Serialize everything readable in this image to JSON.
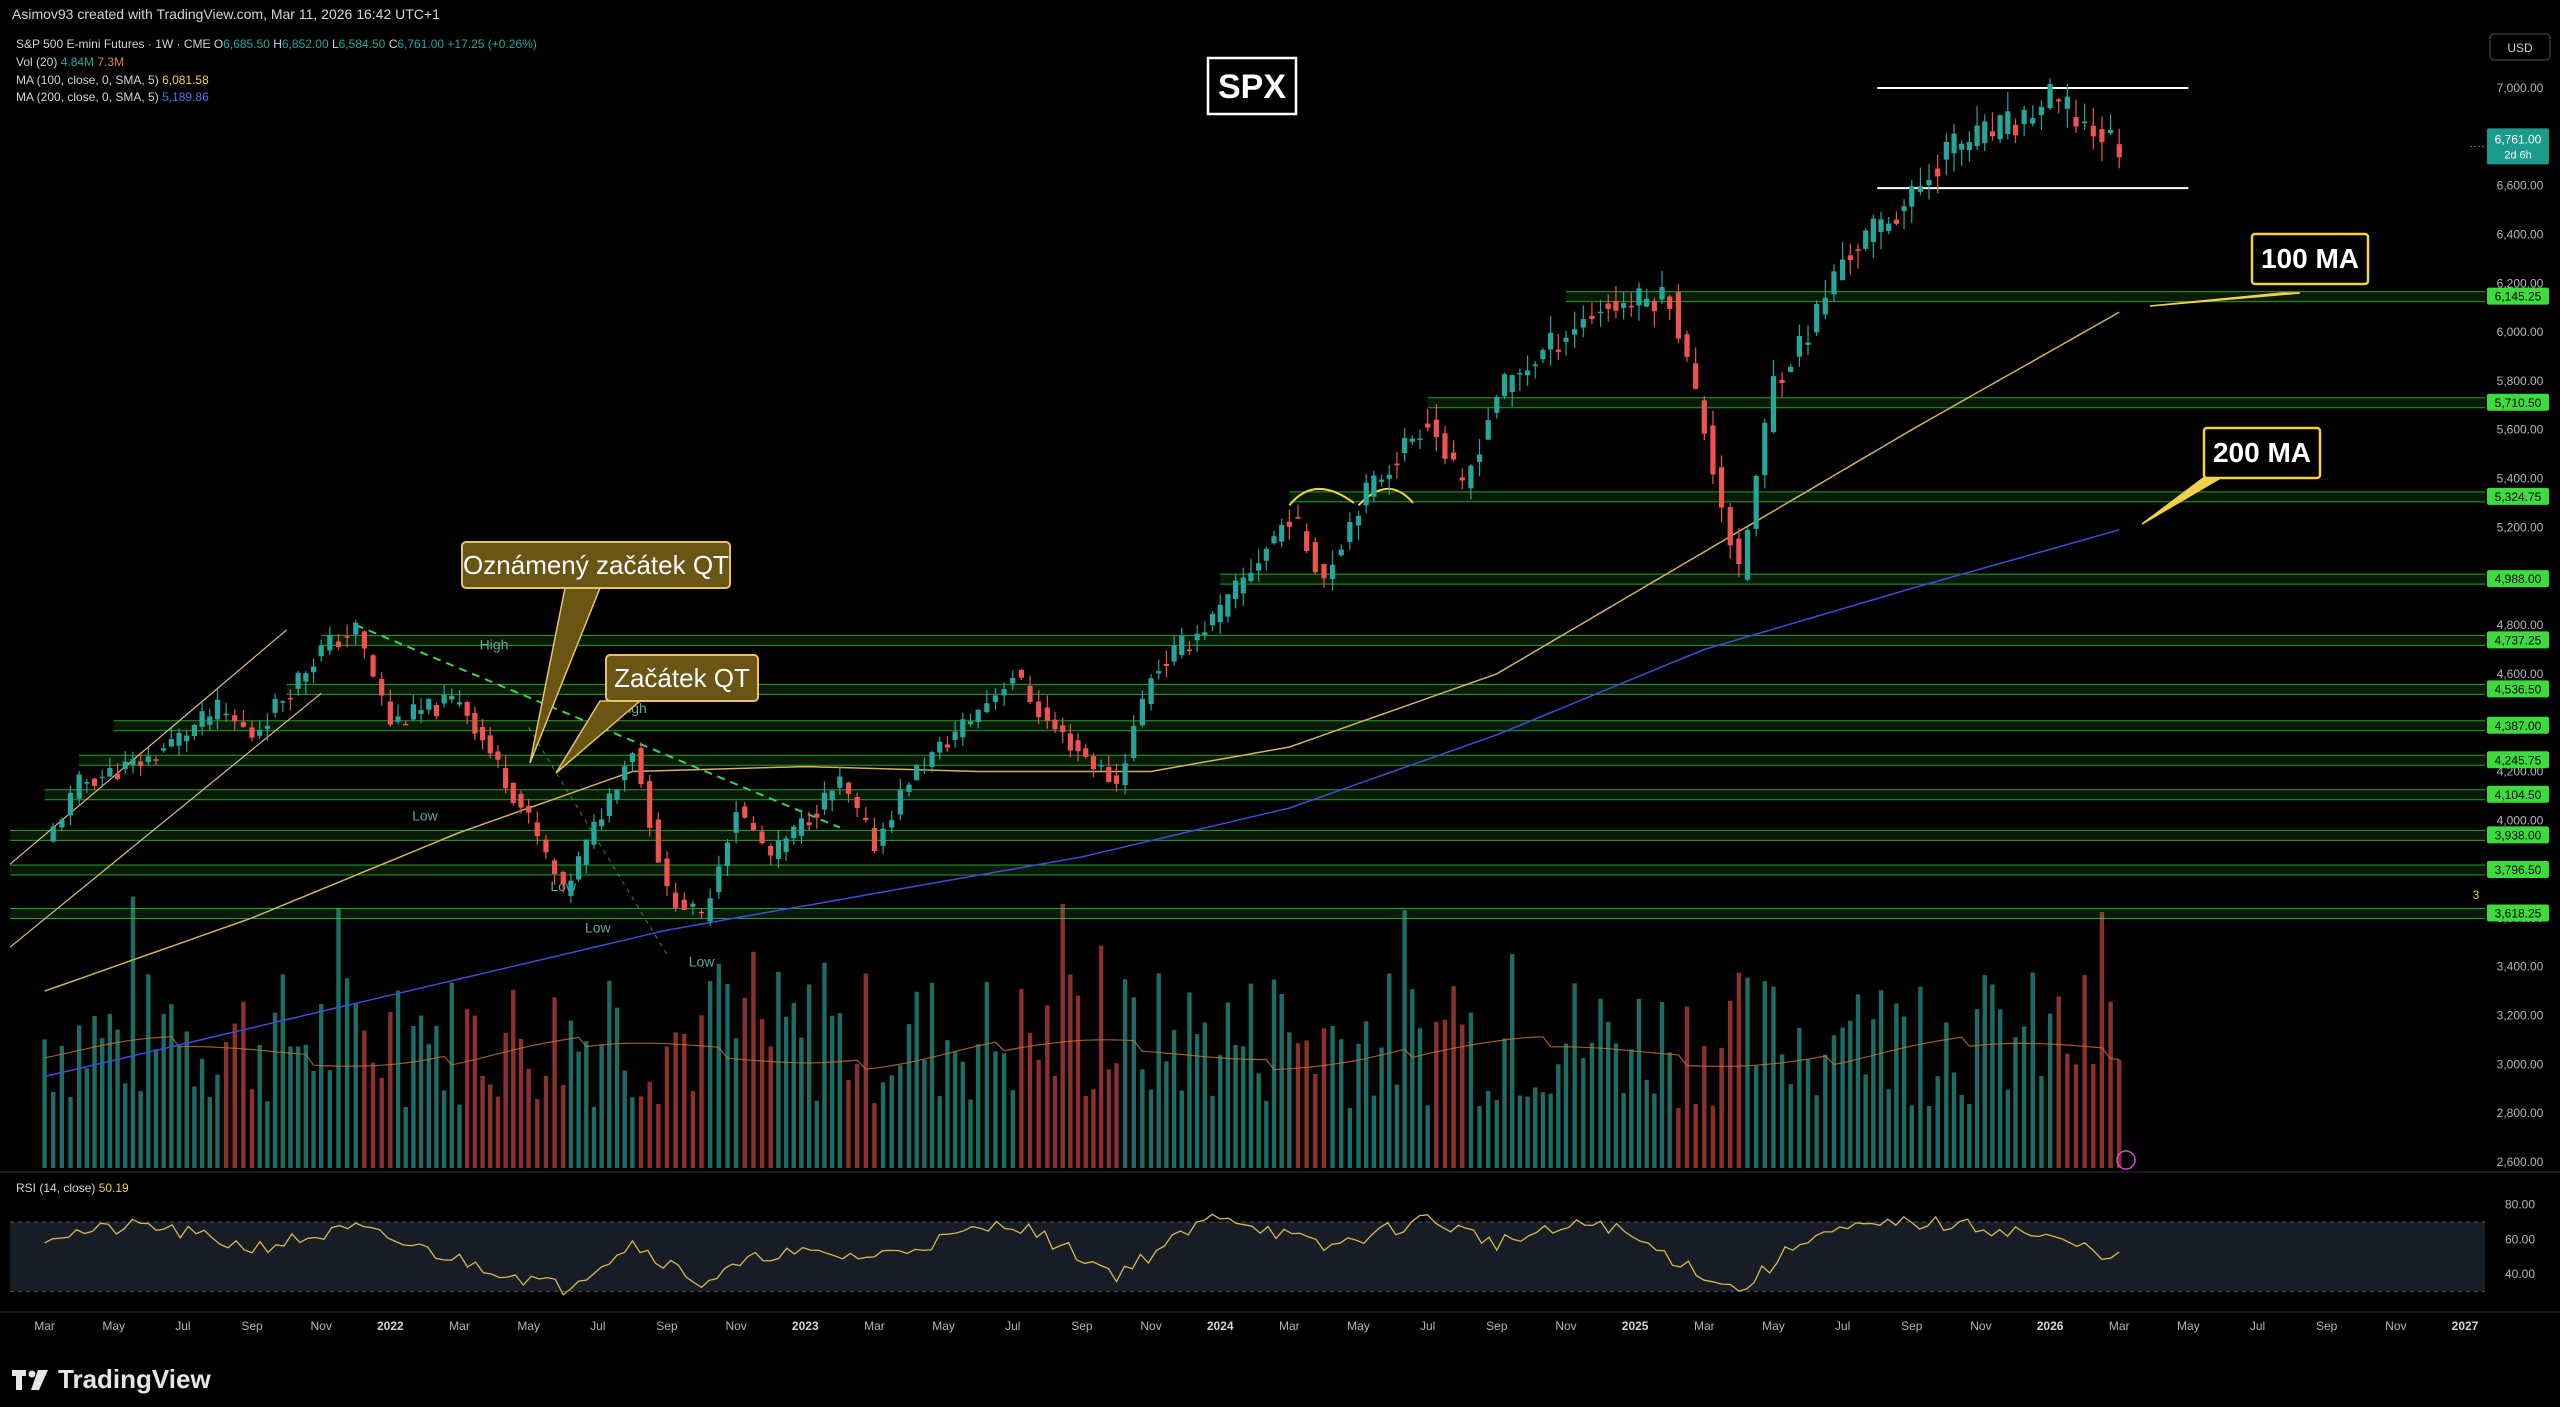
{
  "header": {
    "credit": "Asimov93 created with TradingView.com, Mar 11, 2026 16:42 UTC+1"
  },
  "legend": {
    "symbol": "S&P 500 E-mini Futures · 1W · CME",
    "ohlc": [
      {
        "k": "O",
        "v": "6,685.50"
      },
      {
        "k": "H",
        "v": "6,852.00"
      },
      {
        "k": "L",
        "v": "6,584.50"
      },
      {
        "k": "C",
        "v": "6,761.00"
      }
    ],
    "change": "+17.25 (+0.26%)",
    "vol_label": "Vol (20)",
    "vol_v1": "4.84M",
    "vol_v2": "7.3M",
    "ma100_label": "MA (100, close, 0, SMA, 5)",
    "ma100_value": "6,081.58",
    "ma200_label": "MA (200, close, 0, SMA, 5)",
    "ma200_value": "5,189.86"
  },
  "rsi": {
    "label": "RSI (14, close)",
    "value": "50.19",
    "ticks": [
      "80.00",
      "60.00",
      "40.00"
    ],
    "level_low": 30,
    "level_high": 70
  },
  "currency": "USD",
  "last_price": {
    "value": "6,761.00",
    "countdown": "2d 6h"
  },
  "annotations": {
    "spx": "SPX",
    "ma100": "100 MA",
    "ma200": "200 MA",
    "qt_announced": "Oznámený začátek QT",
    "qt_start": "Začátek QT",
    "high1": "High",
    "high2": "High",
    "low1": "Low",
    "low2": "Low",
    "low3": "Low",
    "low4": "Low",
    "small_marker": "3"
  },
  "colors": {
    "up": "#26a69a",
    "down": "#ef5350",
    "vol_up": "#1d6b63",
    "vol_down": "#8b2f2f",
    "ma100": "#d4b25a",
    "ma200": "#3f4dd6",
    "level": "#3cdc3c",
    "callout_fill": "#6b5515",
    "callout_border": "#e8c36a",
    "rsi_line": "#d9b84a"
  },
  "footer": {
    "brand": "TradingView"
  },
  "chart_data": {
    "type": "candlestick",
    "timeframe": "1W",
    "ylim": [
      2500,
      7300
    ],
    "y_ticks": [
      2600,
      2800,
      3000,
      3200,
      3400,
      3600,
      3800,
      4000,
      4200,
      4400,
      4600,
      4800,
      5000,
      5200,
      5400,
      5600,
      5800,
      6000,
      6200,
      6400,
      6600,
      6800,
      7000
    ],
    "x_labels": [
      "Mar",
      "May",
      "Jul",
      "Sep",
      "Nov",
      "2022",
      "Mar",
      "May",
      "Jul",
      "Sep",
      "Nov",
      "2023",
      "Mar",
      "May",
      "Jul",
      "Sep",
      "Nov",
      "2024",
      "Mar",
      "May",
      "Jul",
      "Sep",
      "Nov",
      "2025",
      "Mar",
      "May",
      "Jul",
      "Sep",
      "Nov",
      "2026",
      "Mar",
      "May",
      "Jul",
      "Sep",
      "Nov",
      "2027"
    ],
    "price_path": [
      [
        "2021-03",
        3900
      ],
      [
        "2021-04",
        4150
      ],
      [
        "2021-06",
        4250
      ],
      [
        "2021-08",
        4450
      ],
      [
        "2021-09",
        4350
      ],
      [
        "2021-11",
        4700
      ],
      [
        "2021-12",
        4780
      ],
      [
        "2022-01",
        4400
      ],
      [
        "2022-03",
        4500
      ],
      [
        "2022-05",
        4000
      ],
      [
        "2022-06",
        3700
      ],
      [
        "2022-08",
        4300
      ],
      [
        "2022-09",
        3700
      ],
      [
        "2022-10",
        3600
      ],
      [
        "2022-11",
        4050
      ],
      [
        "2022-12",
        3850
      ],
      [
        "2023-02",
        4150
      ],
      [
        "2023-03",
        3900
      ],
      [
        "2023-04",
        4170
      ],
      [
        "2023-06",
        4450
      ],
      [
        "2023-07",
        4600
      ],
      [
        "2023-08",
        4400
      ],
      [
        "2023-10",
        4150
      ],
      [
        "2023-11",
        4600
      ],
      [
        "2024-01",
        4850
      ],
      [
        "2024-03",
        5250
      ],
      [
        "2024-04",
        5000
      ],
      [
        "2024-05",
        5300
      ],
      [
        "2024-07",
        5650
      ],
      [
        "2024-08",
        5350
      ],
      [
        "2024-09",
        5750
      ],
      [
        "2024-11",
        6000
      ],
      [
        "2024-12",
        6100
      ],
      [
        "2025-02",
        6150
      ],
      [
        "2025-03",
        5600
      ],
      [
        "2025-04",
        5000
      ],
      [
        "2025-05",
        5800
      ],
      [
        "2025-06",
        6000
      ],
      [
        "2025-07",
        6300
      ],
      [
        "2025-09",
        6550
      ],
      [
        "2025-10",
        6750
      ],
      [
        "2025-12",
        6850
      ],
      [
        "2026-01",
        6950
      ],
      [
        "2026-02",
        6850
      ],
      [
        "2026-03",
        6761
      ]
    ],
    "levels": [
      6145.25,
      5710.5,
      5324.75,
      4988,
      4737.25,
      4536.5,
      4387,
      4245.75,
      4104.5,
      3938,
      3796.5,
      3618.25
    ],
    "level_labels": [
      "6,145.25",
      "5,710.50",
      "5,324.75",
      "4,988.00",
      "4,737.25",
      "4,536.50",
      "4,387.00",
      "4,245.75",
      "4,104.50",
      "3,938.00",
      "3,796.50",
      "3,618.25"
    ],
    "range_box": {
      "top": 7000,
      "bottom": 6590
    },
    "ma100_path": [
      [
        "2021-03",
        3300
      ],
      [
        "2021-09",
        3600
      ],
      [
        "2022-03",
        3950
      ],
      [
        "2022-08",
        4200
      ],
      [
        "2023-01",
        4220
      ],
      [
        "2023-06",
        4200
      ],
      [
        "2023-11",
        4200
      ],
      [
        "2024-03",
        4300
      ],
      [
        "2024-09",
        4600
      ],
      [
        "2025-03",
        5100
      ],
      [
        "2025-09",
        5600
      ],
      [
        "2026-03",
        6081.58
      ]
    ],
    "ma200_path": [
      [
        "2021-03",
        2950
      ],
      [
        "2021-09",
        3150
      ],
      [
        "2022-03",
        3350
      ],
      [
        "2022-09",
        3550
      ],
      [
        "2023-03",
        3700
      ],
      [
        "2023-09",
        3850
      ],
      [
        "2024-03",
        4050
      ],
      [
        "2024-09",
        4350
      ],
      [
        "2025-03",
        4700
      ],
      [
        "2025-09",
        4950
      ],
      [
        "2026-03",
        5189.86
      ]
    ],
    "volume_scale_max_million": 7.3,
    "rsi_path": [
      [
        "2021-03",
        62
      ],
      [
        "2021-06",
        68
      ],
      [
        "2021-09",
        55
      ],
      [
        "2021-12",
        66
      ],
      [
        "2022-03",
        48
      ],
      [
        "2022-06",
        32
      ],
      [
        "2022-08",
        58
      ],
      [
        "2022-10",
        35
      ],
      [
        "2022-12",
        52
      ],
      [
        "2023-03",
        50
      ],
      [
        "2023-07",
        70
      ],
      [
        "2023-10",
        40
      ],
      [
        "2024-01",
        75
      ],
      [
        "2024-04",
        55
      ],
      [
        "2024-07",
        72
      ],
      [
        "2024-09",
        58
      ],
      [
        "2024-12",
        70
      ],
      [
        "2025-03",
        40
      ],
      [
        "2025-04",
        30
      ],
      [
        "2025-06",
        62
      ],
      [
        "2025-09",
        70
      ],
      [
        "2025-12",
        65
      ],
      [
        "2026-02",
        55
      ],
      [
        "2026-03",
        50.19
      ]
    ]
  }
}
